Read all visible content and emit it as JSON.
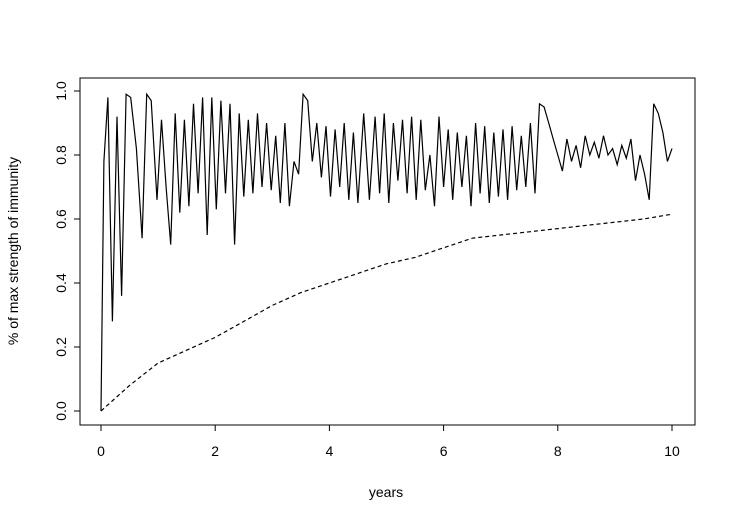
{
  "chart_data": {
    "type": "line",
    "title": "",
    "xlabel": "years",
    "ylabel": "% of max strength of immunity",
    "xlim": [
      0,
      10
    ],
    "ylim": [
      0,
      1
    ],
    "x_ticks": [
      0,
      2,
      4,
      6,
      8,
      10
    ],
    "x_tick_labels": [
      "0",
      "2",
      "4",
      "6",
      "8",
      "10"
    ],
    "y_ticks": [
      0,
      0.2,
      0.4,
      0.6,
      0.8,
      1
    ],
    "y_tick_labels": [
      "0.0",
      "0.2",
      "0.4",
      "0.6",
      "0.8",
      "1.0"
    ],
    "grid": false,
    "legend": "none",
    "series": [
      {
        "style": "solid",
        "x": [
          0,
          0.05,
          0.12,
          0.2,
          0.28,
          0.36,
          0.44,
          0.52,
          0.62,
          0.72,
          0.8,
          0.88,
          0.98,
          1.06,
          1.14,
          1.22,
          1.3,
          1.38,
          1.46,
          1.54,
          1.62,
          1.7,
          1.78,
          1.86,
          1.94,
          2.02,
          2.1,
          2.18,
          2.26,
          2.34,
          2.42,
          2.5,
          2.58,
          2.66,
          2.74,
          2.82,
          2.9,
          2.98,
          3.06,
          3.14,
          3.22,
          3.3,
          3.38,
          3.46,
          3.54,
          3.62,
          3.7,
          3.78,
          3.86,
          3.94,
          4.02,
          4.1,
          4.18,
          4.26,
          4.34,
          4.42,
          4.5,
          4.6,
          4.7,
          4.8,
          4.88,
          4.96,
          5.04,
          5.12,
          5.2,
          5.28,
          5.36,
          5.44,
          5.52,
          5.6,
          5.68,
          5.76,
          5.84,
          5.92,
          6.0,
          6.08,
          6.16,
          6.24,
          6.32,
          6.4,
          6.48,
          6.56,
          6.64,
          6.72,
          6.8,
          6.88,
          6.96,
          7.04,
          7.12,
          7.2,
          7.28,
          7.36,
          7.44,
          7.52,
          7.6,
          7.68,
          7.76,
          7.84,
          7.92,
          8.0,
          8.08,
          8.16,
          8.24,
          8.32,
          8.4,
          8.48,
          8.56,
          8.64,
          8.72,
          8.8,
          8.88,
          8.96,
          9.04,
          9.12,
          9.2,
          9.28,
          9.36,
          9.44,
          9.52,
          9.6,
          9.68,
          9.76,
          9.84,
          9.92,
          10.0
        ],
        "y": [
          0.0,
          0.78,
          0.98,
          0.28,
          0.92,
          0.36,
          0.99,
          0.98,
          0.82,
          0.54,
          0.99,
          0.97,
          0.66,
          0.91,
          0.7,
          0.52,
          0.93,
          0.62,
          0.91,
          0.64,
          0.96,
          0.68,
          0.98,
          0.55,
          0.98,
          0.63,
          0.97,
          0.68,
          0.96,
          0.52,
          0.93,
          0.67,
          0.91,
          0.68,
          0.93,
          0.7,
          0.9,
          0.69,
          0.86,
          0.65,
          0.9,
          0.64,
          0.78,
          0.74,
          0.99,
          0.97,
          0.78,
          0.9,
          0.73,
          0.89,
          0.67,
          0.88,
          0.7,
          0.9,
          0.66,
          0.87,
          0.65,
          0.93,
          0.66,
          0.92,
          0.68,
          0.93,
          0.65,
          0.9,
          0.72,
          0.91,
          0.68,
          0.92,
          0.66,
          0.91,
          0.69,
          0.8,
          0.64,
          0.92,
          0.7,
          0.88,
          0.66,
          0.87,
          0.7,
          0.86,
          0.64,
          0.9,
          0.68,
          0.89,
          0.65,
          0.87,
          0.67,
          0.88,
          0.66,
          0.89,
          0.69,
          0.86,
          0.7,
          0.9,
          0.68,
          0.96,
          0.95,
          0.9,
          0.85,
          0.8,
          0.75,
          0.85,
          0.78,
          0.83,
          0.76,
          0.86,
          0.8,
          0.84,
          0.79,
          0.86,
          0.8,
          0.82,
          0.77,
          0.83,
          0.79,
          0.85,
          0.72,
          0.8,
          0.74,
          0.66,
          0.96,
          0.93,
          0.87,
          0.78,
          0.82
        ]
      },
      {
        "style": "dashed",
        "x": [
          0,
          0.5,
          1.0,
          1.5,
          2.0,
          2.5,
          3.0,
          3.5,
          4.0,
          4.5,
          5.0,
          5.5,
          6.0,
          6.5,
          7.0,
          7.5,
          8.0,
          8.5,
          9.0,
          9.5,
          10.0
        ],
        "y": [
          0.0,
          0.08,
          0.15,
          0.19,
          0.23,
          0.28,
          0.33,
          0.37,
          0.4,
          0.43,
          0.46,
          0.48,
          0.51,
          0.54,
          0.55,
          0.56,
          0.57,
          0.58,
          0.59,
          0.6,
          0.615
        ]
      }
    ]
  }
}
